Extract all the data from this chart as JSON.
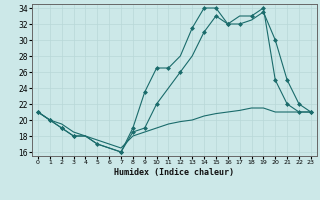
{
  "title": "",
  "xlabel": "Humidex (Indice chaleur)",
  "ylabel": "",
  "bg_color": "#cce8e8",
  "grid_color": "#b8d8d8",
  "line_color": "#1a6b6b",
  "xlim": [
    -0.5,
    23.5
  ],
  "ylim": [
    15.5,
    34.5
  ],
  "xticks": [
    0,
    1,
    2,
    3,
    4,
    5,
    6,
    7,
    8,
    9,
    10,
    11,
    12,
    13,
    14,
    15,
    16,
    17,
    18,
    19,
    20,
    21,
    22,
    23
  ],
  "yticks": [
    16,
    18,
    20,
    22,
    24,
    26,
    28,
    30,
    32,
    34
  ],
  "line1_x": [
    0,
    1,
    2,
    3,
    4,
    5,
    6,
    7,
    8,
    9,
    10,
    11,
    12,
    13,
    14,
    15,
    16,
    17,
    18,
    19,
    20,
    21,
    22,
    23
  ],
  "line1_y": [
    21,
    20,
    19,
    18,
    18,
    17,
    16.5,
    16,
    19,
    23.5,
    26.5,
    26.5,
    28,
    31.5,
    34,
    34,
    32,
    33,
    33,
    34,
    25,
    22,
    21,
    21
  ],
  "line2_x": [
    0,
    1,
    2,
    3,
    4,
    5,
    6,
    7,
    8,
    9,
    10,
    11,
    12,
    13,
    14,
    15,
    16,
    17,
    18,
    19,
    20,
    21,
    22,
    23
  ],
  "line2_y": [
    21,
    20,
    19,
    18,
    18,
    17,
    16.5,
    16,
    18.5,
    19,
    22,
    24,
    26,
    28,
    31,
    33,
    32,
    32,
    32.5,
    33.5,
    30,
    25,
    22,
    21
  ],
  "line3_x": [
    0,
    1,
    2,
    3,
    4,
    5,
    6,
    7,
    8,
    9,
    10,
    11,
    12,
    13,
    14,
    15,
    16,
    17,
    18,
    19,
    20,
    21,
    22,
    23
  ],
  "line3_y": [
    21,
    20,
    19.5,
    18.5,
    18,
    17.5,
    17,
    16.5,
    18,
    18.5,
    19,
    19.5,
    19.8,
    20,
    20.5,
    20.8,
    21,
    21.2,
    21.5,
    21.5,
    21,
    21,
    21,
    21
  ],
  "marker1_x": [
    0,
    1,
    2,
    3,
    5,
    7,
    8,
    9,
    10,
    11,
    13,
    14,
    15,
    16,
    18,
    19,
    20,
    21,
    22,
    23
  ],
  "marker1_y": [
    21,
    20,
    19,
    18,
    17,
    16,
    19,
    23.5,
    26.5,
    26.5,
    31.5,
    34,
    34,
    32,
    33,
    34,
    25,
    22,
    21,
    21
  ],
  "marker2_x": [
    0,
    1,
    2,
    3,
    7,
    8,
    9,
    10,
    12,
    14,
    15,
    16,
    17,
    19,
    20,
    21,
    22,
    23
  ],
  "marker2_y": [
    21,
    20,
    19,
    18,
    16,
    18.5,
    19,
    22,
    26,
    31,
    33,
    32,
    32,
    33.5,
    30,
    25,
    22,
    21
  ]
}
